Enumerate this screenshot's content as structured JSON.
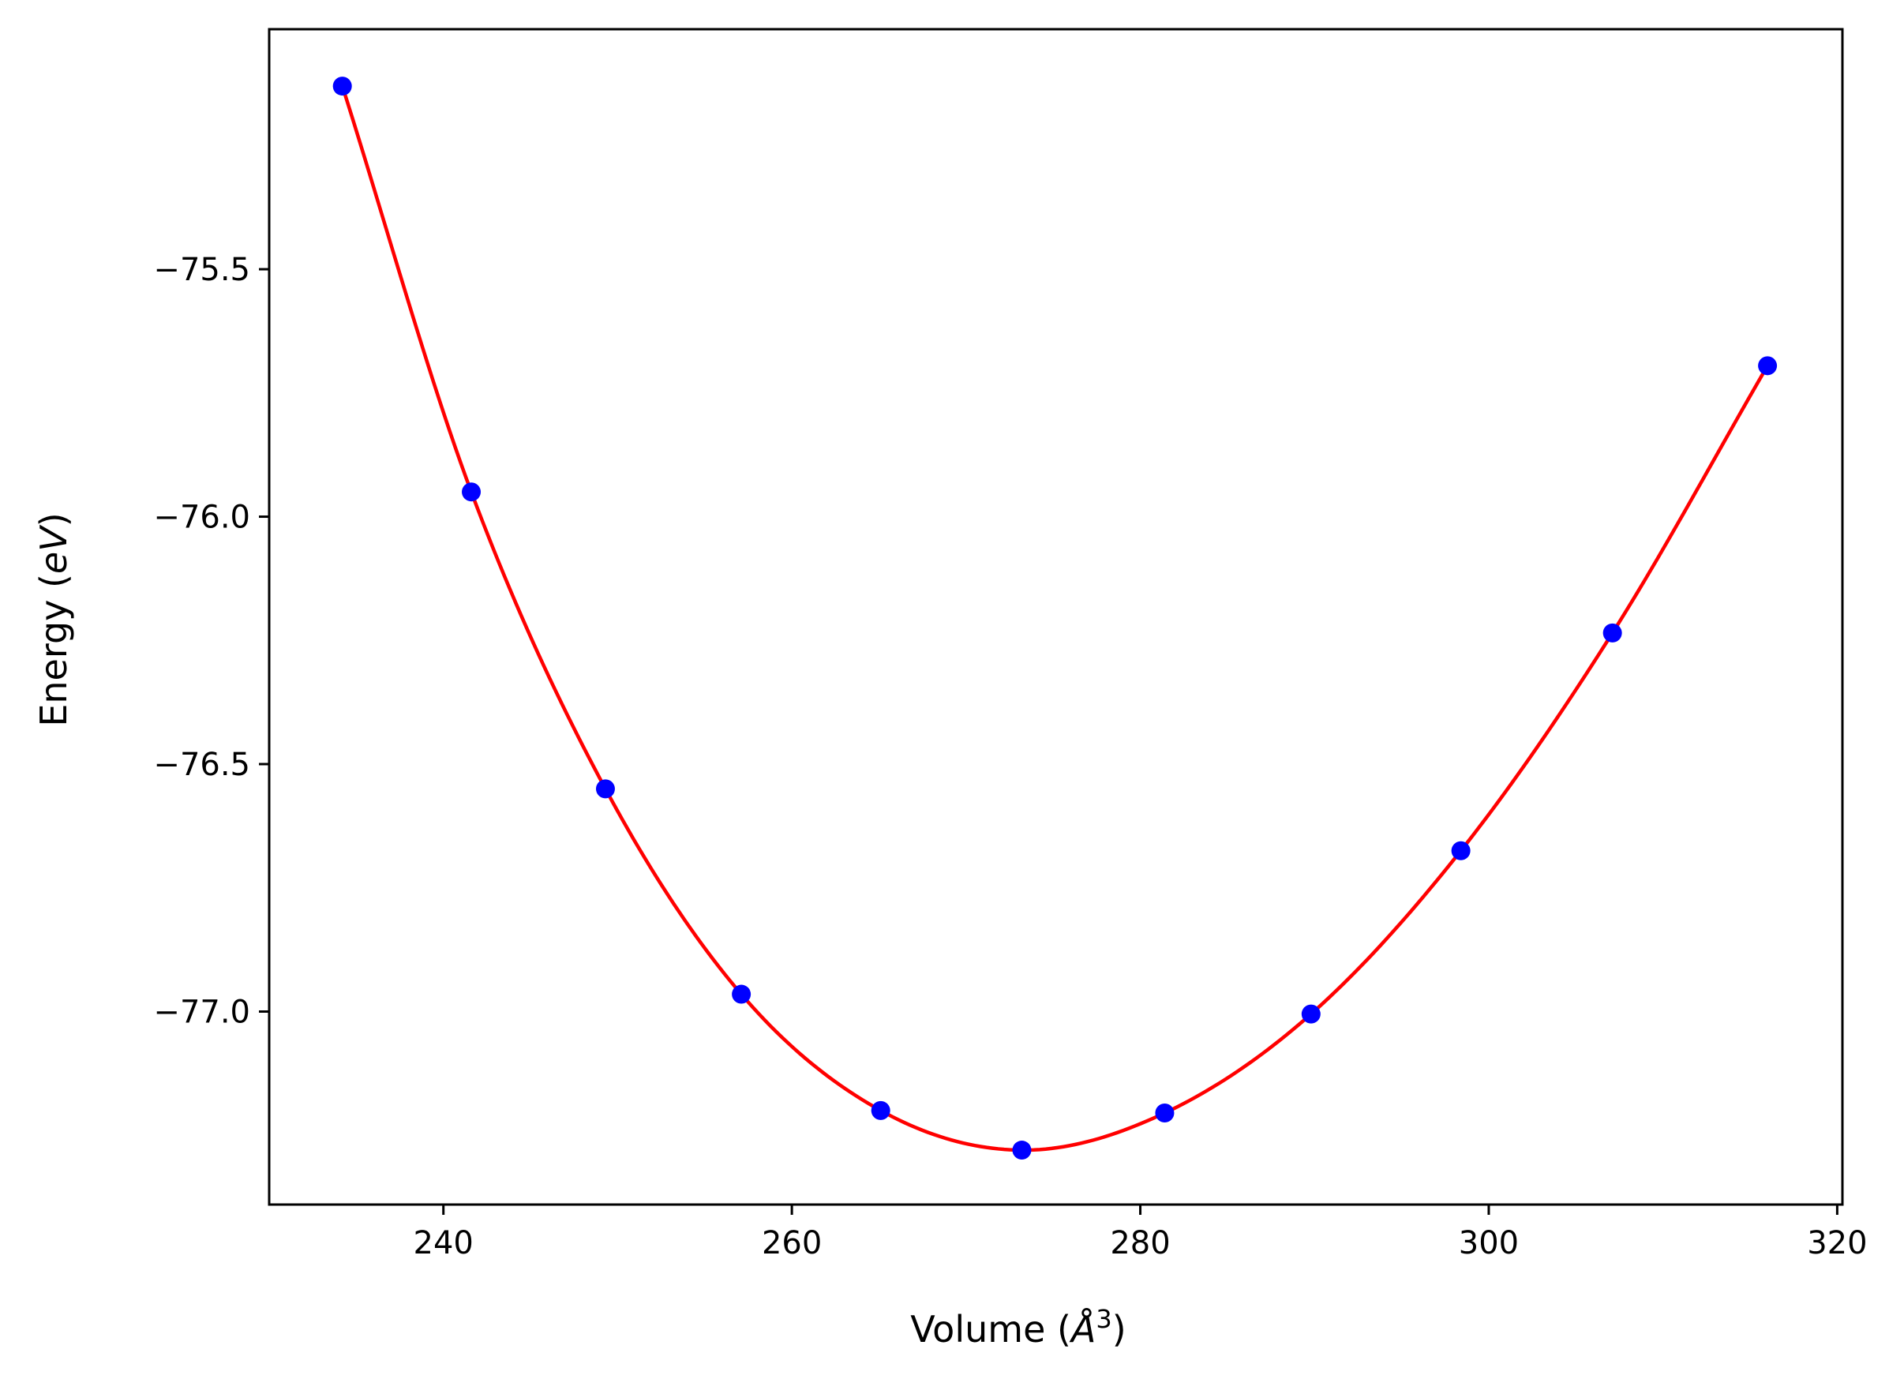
{
  "chart_data": {
    "type": "scatter",
    "xlabel_text": "Volume (",
    "xlabel_symbol": "Å",
    "xlabel_exp": "3",
    "xlabel_close": ")",
    "ylabel_text": "Energy (",
    "ylabel_unit": "eV",
    "ylabel_close": ")",
    "xlim": [
      230,
      320.3
    ],
    "ylim": [
      -77.39,
      -75.015
    ],
    "xticks": [
      240,
      260,
      280,
      300,
      320
    ],
    "xtick_labels": [
      "240",
      "260",
      "280",
      "300",
      "320"
    ],
    "yticks": [
      -75.5,
      -76.0,
      -76.5,
      -77.0
    ],
    "ytick_labels": [
      "−75.5",
      "−76.0",
      "−76.5",
      "−77.0"
    ],
    "grid": false,
    "points": {
      "color": "#0000ff",
      "x": [
        234.2,
        241.6,
        249.3,
        257.1,
        265.1,
        273.2,
        281.4,
        289.8,
        298.4,
        307.1,
        316.0
      ],
      "y": [
        -75.13,
        -75.95,
        -76.55,
        -76.965,
        -77.2,
        -77.28,
        -77.205,
        -77.005,
        -76.675,
        -76.235,
        -75.695
      ]
    },
    "fit_curve": {
      "color": "#ff0000",
      "x_range": [
        234.2,
        316.0
      ]
    }
  }
}
